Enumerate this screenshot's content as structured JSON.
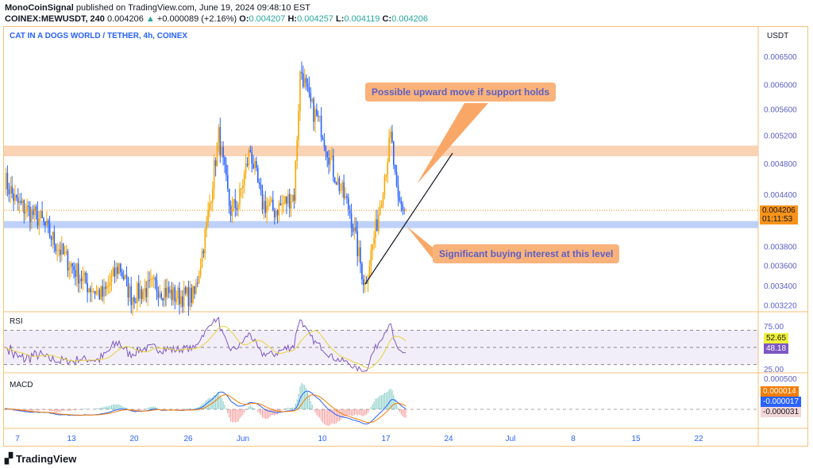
{
  "header": {
    "author": "MonoCoinSignal",
    "published": "published on TradingView.com, June 19, 2024 09:48:10 EST",
    "symbol": "COINEX:MEWUSDT, 240",
    "last": "0.004206",
    "change": "+0.000089 (+2.16%)",
    "o_label": "O:",
    "o": "0.004207",
    "h_label": "H:",
    "h": "0.004257",
    "l_label": "L:",
    "l": "0.004119",
    "c_label": "C:",
    "c": "0.004206"
  },
  "chart_title": "CAT IN A DOGS WORLD / TETHER, 4h, COINEX",
  "currency": "USDT",
  "price_ticks": [
    "0.006500",
    "0.006000",
    "0.005600",
    "0.005200",
    "0.004800",
    "0.004400",
    "0.003800",
    "0.003600",
    "0.003400",
    "0.003220"
  ],
  "current_price": "0.004206",
  "countdown": "01:11:53",
  "rsi": {
    "label": "RSI",
    "ticks": [
      "75.00",
      "25.00"
    ],
    "value": "48.18",
    "ma": "52.65"
  },
  "macd": {
    "label": "MACD",
    "top_tick": "0.000500",
    "hist": "0.000014",
    "macd": "-0.000017",
    "signal": "-0.000031"
  },
  "time_ticks": [
    "7",
    "13",
    "20",
    "26",
    "Jun",
    "10",
    "17",
    "24",
    "Jul",
    "8",
    "15",
    "22"
  ],
  "annotations": {
    "upper": "Possible upward move if support holds",
    "lower": "Significant buying interest at this level"
  },
  "zones": {
    "resistance": [
      0.0049,
      0.00505
    ],
    "support": [
      0.004,
      0.00408
    ]
  },
  "colors": {
    "up": "#f7a600",
    "down": "#2962ff",
    "resistance": "#f9cba8",
    "support": "#b4c9f7",
    "accent": "#2962ff"
  },
  "chart_data": {
    "type": "candlestick",
    "scale": "log",
    "ylim": [
      0.0031,
      0.0068
    ],
    "price_path": [
      [
        "2024-05-05 10:00",
        0.0046
      ],
      [
        "2024-05-06 17:00",
        0.0043
      ],
      [
        "2024-05-09 10:00",
        0.0041
      ],
      [
        "2024-05-12 00:00",
        0.0037
      ],
      [
        "2024-05-14 17:00",
        0.0034
      ],
      [
        "2024-05-16 10:00",
        0.0033
      ],
      [
        "2024-05-18 05:00",
        0.0036
      ],
      [
        "2024-05-19 12:00",
        0.0033
      ],
      [
        "2024-05-22 05:00",
        0.0034
      ],
      [
        "2024-05-24 10:00",
        0.0033
      ],
      [
        "2024-05-26 14:00",
        0.0033
      ],
      [
        "2024-05-27 22:00",
        0.004
      ],
      [
        "2024-05-29 07:00",
        0.0052
      ],
      [
        "2024-05-30 14:00",
        0.0042
      ],
      [
        "2024-05-31 12:00",
        0.0043
      ],
      [
        "2024-06-01 19:00",
        0.005
      ],
      [
        "2024-06-03 02:00",
        0.0043
      ],
      [
        "2024-06-04 12:00",
        0.0042
      ],
      [
        "2024-06-06 17:00",
        0.0044
      ],
      [
        "2024-06-07 10:00",
        0.0063
      ],
      [
        "2024-06-08 10:00",
        0.0057
      ],
      [
        "2024-06-09 19:00",
        0.0053
      ],
      [
        "2024-06-11 02:00",
        0.0047
      ],
      [
        "2024-06-12 22:00",
        0.0042
      ],
      [
        "2024-06-14 14:00",
        0.0034
      ],
      [
        "2024-06-16 00:00",
        0.0041
      ],
      [
        "2024-06-17 12:00",
        0.0052
      ],
      [
        "2024-06-18 05:00",
        0.0043
      ],
      [
        "2024-06-19 05:00",
        0.004206
      ]
    ]
  }
}
